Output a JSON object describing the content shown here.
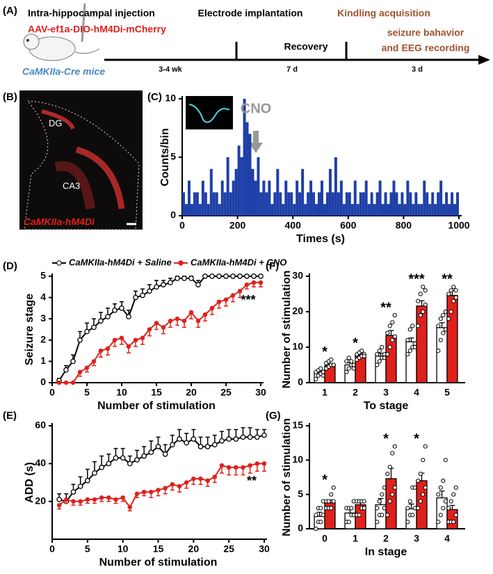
{
  "panel_labels": [
    "(A)",
    "(B)",
    "(C)",
    "(D)",
    "(E)",
    "(F)",
    "(G)"
  ],
  "timeline": {
    "injection": "Intra-hippocampal injection",
    "virus": "AAV-ef1a-DIO-hM4Di-mCherry",
    "mice": "CaMKIIa-Cre mice",
    "electrode": "Electrode implantation",
    "recovery": "Recovery",
    "kindling": "Kindling acquisition",
    "recording": [
      "seizure bahavior",
      "and EEG recording"
    ],
    "durations": [
      "3-4 wk",
      "7 d",
      "3 d"
    ]
  },
  "histology": {
    "labels": [
      "DG",
      "CA3"
    ],
    "caption": "CaMKIIa-hM4Di"
  },
  "chart_data": [
    {
      "type": "histogram",
      "y_label": "Counts/bin",
      "x_label": "Times (s)",
      "annotation": "CNO",
      "color": "#1f3fa8",
      "bins": [
        0,
        10,
        20,
        30,
        40,
        50,
        60,
        70,
        80,
        90,
        100,
        110,
        120,
        130,
        140,
        150,
        160,
        170,
        180,
        190,
        200,
        210,
        220,
        230,
        240,
        250,
        260,
        270,
        280,
        290,
        300,
        310,
        320,
        330,
        340,
        350,
        360,
        370,
        380,
        390,
        400,
        410,
        420,
        430,
        440,
        450,
        460,
        470,
        480,
        490,
        500,
        510,
        520,
        530,
        540,
        550,
        560,
        570,
        580,
        590,
        600,
        610,
        620,
        630,
        640,
        650,
        660,
        670,
        680,
        690,
        700,
        710,
        720,
        730,
        740,
        750,
        760,
        770,
        780,
        790,
        800,
        810,
        820,
        830,
        840,
        850,
        860,
        870,
        880,
        890,
        900,
        910,
        920,
        930,
        940,
        950,
        960,
        970,
        980,
        990,
        1000
      ],
      "counts": [
        2,
        1,
        3,
        1,
        2,
        2,
        1,
        3,
        2,
        1,
        4,
        2,
        2,
        1,
        3,
        2,
        5,
        2,
        3,
        4,
        6,
        5,
        10,
        8,
        7,
        4,
        3,
        5,
        2,
        3,
        2,
        3,
        1,
        2,
        4,
        2,
        1,
        3,
        2,
        2,
        1,
        3,
        2,
        4,
        1,
        2,
        3,
        2,
        1,
        2,
        3,
        1,
        2,
        4,
        2,
        5,
        2,
        3,
        1,
        2,
        2,
        1,
        3,
        1,
        2,
        2,
        3,
        1,
        2,
        1,
        2,
        3,
        1,
        2,
        1,
        2,
        3,
        2,
        1,
        2,
        1,
        3,
        2,
        1,
        2,
        1,
        1,
        3,
        2,
        1,
        2,
        1,
        2,
        3,
        1,
        2,
        1,
        2,
        1,
        2
      ],
      "xlim": [
        0,
        1000
      ],
      "xticks": [
        0,
        200,
        400,
        600,
        800,
        1000
      ],
      "ylim": [
        0,
        10
      ],
      "yticks": [
        0,
        5,
        10
      ]
    },
    {
      "type": "line",
      "y_label": "Seizure stage",
      "x_label": "Number of stimulation",
      "annotation": "***",
      "x": [
        1,
        2,
        3,
        4,
        5,
        6,
        7,
        8,
        9,
        10,
        11,
        12,
        13,
        14,
        15,
        16,
        17,
        18,
        19,
        20,
        21,
        22,
        23,
        24,
        25,
        26,
        27,
        28,
        29,
        30
      ],
      "series": [
        {
          "name": "CaMKIIa-hM4Di + Saline",
          "color": "#000000",
          "marker": "open",
          "error_direction": "up",
          "values": [
            0.1,
            0.6,
            1.0,
            2.0,
            2.4,
            2.6,
            2.9,
            3.1,
            3.4,
            3.5,
            3.1,
            4.0,
            4.1,
            4.3,
            4.5,
            4.6,
            4.7,
            4.9,
            4.9,
            4.9,
            4.6,
            5,
            5,
            5,
            5,
            5,
            5,
            5,
            5,
            5
          ],
          "errors": [
            0.1,
            0.2,
            0.3,
            0.4,
            0.4,
            0.4,
            0.4,
            0.4,
            0.3,
            0.3,
            0.3,
            0.3,
            0.3,
            0.3,
            0.3,
            0.2,
            0.2,
            0.1,
            0.1,
            0.1,
            0.2,
            0,
            0,
            0,
            0,
            0,
            0,
            0,
            0,
            0
          ]
        },
        {
          "name": "CaMKIIa-hM4Di + CNO",
          "color": "#e0201b",
          "marker": "filled",
          "error_direction": "down",
          "values": [
            0,
            0,
            0,
            0.5,
            0.7,
            1.0,
            1.5,
            1.6,
            2.0,
            2.1,
            1.7,
            2.0,
            2.1,
            2.5,
            2.8,
            2.6,
            2.9,
            3.0,
            2.9,
            3.3,
            2.9,
            3.2,
            3.5,
            3.8,
            3.9,
            4.1,
            4.3,
            4.6,
            4.7,
            4.7
          ],
          "errors": [
            0,
            0,
            0,
            0.2,
            0.2,
            0.2,
            0.3,
            0.3,
            0.3,
            0.3,
            0.3,
            0.3,
            0.3,
            0.3,
            0.3,
            0.3,
            0.3,
            0.3,
            0.3,
            0.3,
            0.3,
            0.3,
            0.3,
            0.3,
            0.3,
            0.3,
            0.3,
            0.2,
            0.2,
            0.2
          ]
        }
      ],
      "xlim": [
        0,
        30
      ],
      "xticks": [
        0,
        5,
        10,
        15,
        20,
        25,
        30
      ],
      "ylim": [
        0,
        5
      ],
      "yticks": [
        0,
        1,
        2,
        3,
        4,
        5
      ]
    },
    {
      "type": "line",
      "y_label": "ADD (s)",
      "x_label": "Number of stimulation",
      "annotation": "**",
      "x": [
        1,
        2,
        3,
        4,
        5,
        6,
        7,
        8,
        9,
        10,
        11,
        12,
        13,
        14,
        15,
        16,
        17,
        18,
        19,
        20,
        21,
        22,
        23,
        24,
        25,
        26,
        27,
        28,
        29,
        30
      ],
      "series": [
        {
          "name": "CaMKIIa-hM4Di + Saline",
          "color": "#000000",
          "marker": "open",
          "error_direction": "up",
          "values": [
            21,
            20,
            25,
            28,
            31,
            35,
            38,
            40,
            43,
            43,
            40,
            42,
            44,
            46,
            49,
            45,
            50,
            53,
            51,
            53,
            49,
            49,
            50,
            52,
            53,
            53,
            54,
            54,
            54,
            55
          ],
          "errors": [
            3,
            4,
            4,
            5,
            6,
            6,
            6,
            5,
            5,
            5,
            4,
            5,
            5,
            6,
            5,
            5,
            5,
            5,
            5,
            5,
            5,
            5,
            5,
            5,
            5,
            5,
            5,
            5,
            4,
            3
          ]
        },
        {
          "name": "CaMKIIa-hM4Di + CNO",
          "color": "#e0201b",
          "marker": "filled",
          "error_direction": "down",
          "values": [
            18,
            21,
            20,
            20,
            21,
            21,
            22,
            22,
            21,
            22,
            17,
            24,
            25,
            25,
            26,
            27,
            29,
            28,
            30,
            32,
            32,
            31,
            33,
            39,
            38,
            38,
            38,
            39,
            40,
            40
          ],
          "errors": [
            2,
            2,
            2,
            2,
            2,
            2,
            2,
            2,
            2,
            2,
            2,
            2,
            2,
            3,
            3,
            3,
            3,
            3,
            3,
            3,
            3,
            3,
            3,
            4,
            4,
            4,
            4,
            4,
            4,
            4
          ]
        }
      ],
      "xlim": [
        0,
        30
      ],
      "xticks": [
        0,
        5,
        10,
        15,
        20,
        25,
        30
      ],
      "ylim": [
        0,
        60
      ],
      "yticks": [
        20,
        40,
        60
      ]
    },
    {
      "type": "bar",
      "y_label": "Number of stimulation",
      "x_label": "To stage",
      "categories": [
        "1",
        "2",
        "3",
        "4",
        "5"
      ],
      "significance": [
        "*",
        "*",
        "**",
        "***",
        "**"
      ],
      "series": [
        {
          "color": "#ffffff",
          "values": [
            2.8,
            5,
            7.5,
            11.5,
            15.5
          ],
          "errors": [
            0.4,
            0.6,
            0.8,
            1.1,
            1.4
          ],
          "points": [
            [
              1,
              2,
              2.5,
              3,
              3,
              3.5,
              4,
              2
            ],
            [
              3,
              4,
              5,
              5,
              6,
              7,
              6,
              4
            ],
            [
              5,
              6,
              7,
              7,
              8,
              9,
              10,
              8
            ],
            [
              8,
              9,
              10,
              11,
              12,
              15,
              16,
              10
            ],
            [
              9,
              12,
              14,
              15,
              16,
              18,
              19,
              20
            ]
          ]
        },
        {
          "color": "#e0201b",
          "values": [
            4.8,
            7.8,
            13.3,
            21.6,
            24.6
          ],
          "errors": [
            0.4,
            0.4,
            1.4,
            1.5,
            1.3
          ],
          "points": [
            [
              4,
              4.5,
              5,
              5,
              5.5,
              6,
              6.5,
              5
            ],
            [
              6.5,
              7,
              7.5,
              8,
              8,
              8.5,
              9,
              7.5
            ],
            [
              8,
              10,
              12,
              13,
              14,
              16,
              17,
              19
            ],
            [
              16,
              19,
              20,
              22,
              23,
              25,
              27,
              26
            ],
            [
              18,
              20,
              23,
              24,
              25,
              26,
              27,
              26
            ]
          ]
        }
      ],
      "ylim": [
        0,
        30
      ],
      "yticks": [
        0,
        10,
        20,
        30
      ]
    },
    {
      "type": "bar",
      "y_label": "Number of stimulation",
      "x_label": "In stage",
      "categories": [
        "0",
        "1",
        "2",
        "3",
        "4"
      ],
      "significance": [
        "*",
        null,
        "*",
        "*",
        null
      ],
      "series": [
        {
          "color": "#ffffff",
          "values": [
            1.8,
            2.3,
            3.5,
            2.9,
            4.5
          ],
          "errors": [
            0.6,
            0.5,
            0.9,
            0.7,
            1.0
          ],
          "points": [
            [
              0,
              1,
              1,
              2,
              2,
              3,
              3,
              4
            ],
            [
              1,
              1,
              2,
              2,
              3,
              3,
              3,
              4
            ],
            [
              1,
              2,
              2,
              3,
              3,
              4,
              5,
              6
            ],
            [
              1,
              2,
              2,
              3,
              3,
              4,
              6,
              6
            ],
            [
              1,
              2,
              3,
              4,
              5,
              6,
              7,
              10
            ]
          ]
        },
        {
          "color": "#e0201b",
          "values": [
            3.8,
            3.5,
            7.3,
            7.0,
            2.8
          ],
          "errors": [
            0.4,
            0.4,
            1.5,
            1.1,
            0.6
          ],
          "points": [
            [
              3,
              3,
              3,
              4,
              4,
              4,
              5,
              6
            ],
            [
              2,
              2,
              3,
              3,
              4,
              4,
              4,
              4
            ],
            [
              2,
              4,
              5,
              6,
              8,
              9,
              11,
              12
            ],
            [
              3,
              4,
              5,
              6,
              7,
              8,
              10,
              12
            ],
            [
              1,
              1,
              1,
              2,
              3,
              4,
              5,
              6
            ]
          ]
        }
      ],
      "ylim": [
        0,
        15
      ],
      "yticks": [
        0,
        5,
        10,
        15
      ]
    }
  ]
}
